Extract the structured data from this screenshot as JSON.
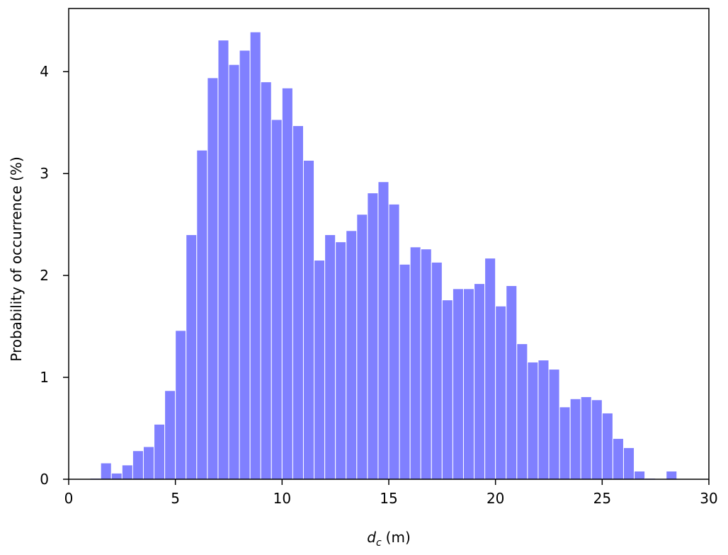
{
  "chart_data": {
    "type": "histogram",
    "ylabel": "Probability of occurrence (%)",
    "xlabel_var": "d",
    "xlabel_sub": "c",
    "xlabel_unit": "(m)",
    "color": "#8080ff",
    "edgecolor": "#ffffff",
    "bins": [
      1,
      1.5,
      2,
      2.5,
      3,
      3.5,
      4,
      4.5,
      5,
      5.5,
      6,
      6.5,
      7,
      7.5,
      8,
      8.5,
      9,
      9.5,
      10,
      10.5,
      11,
      11.5,
      12,
      12.5,
      13,
      13.5,
      14,
      14.5,
      15,
      15.5,
      16,
      16.5,
      17,
      17.5,
      18,
      18.5,
      19,
      19.5,
      20,
      20.5,
      21,
      21.5,
      22,
      22.5,
      23,
      23.5,
      24,
      24.5,
      25,
      25.5,
      26,
      26.5,
      27,
      27.5,
      28,
      28.5
    ],
    "counts": [
      0.01,
      0.16,
      0.06,
      0.14,
      0.28,
      0.32,
      0.54,
      0.87,
      1.46,
      2.4,
      3.23,
      3.94,
      4.31,
      4.07,
      4.21,
      4.39,
      3.9,
      3.53,
      3.84,
      3.47,
      3.13,
      2.15,
      2.4,
      2.33,
      2.44,
      2.6,
      2.81,
      2.92,
      2.7,
      2.11,
      2.28,
      2.26,
      2.13,
      1.76,
      1.87,
      1.87,
      1.92,
      2.17,
      1.7,
      1.9,
      1.33,
      1.15,
      1.17,
      1.08,
      0.71,
      0.79,
      0.81,
      0.78,
      0.65,
      0.4,
      0.31,
      0.08,
      0.01,
      0,
      0.08
    ],
    "xlim": [
      0,
      30
    ],
    "xticks": [
      0,
      5,
      10,
      15,
      20,
      25,
      30
    ],
    "ylim": [
      0,
      4.62
    ],
    "yticks": [
      0,
      1,
      2,
      3,
      4
    ]
  }
}
